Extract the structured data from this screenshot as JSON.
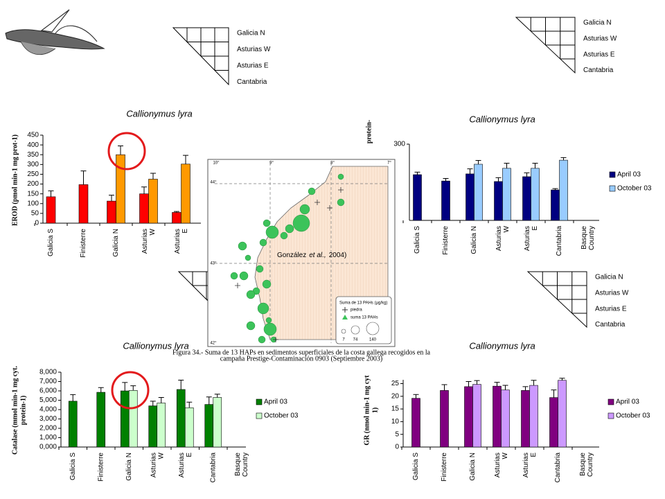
{
  "chart_data": [
    {
      "type": "bar",
      "title": "Callionymus lyra",
      "ylabel": "EROD (pmol min-1 mg prot-1)",
      "categories": [
        "Galicia S",
        "Finisterre",
        "Galicia N",
        "Asturias W",
        "Asturias E"
      ],
      "series": [
        {
          "color": "#ff0000",
          "values": [
            135,
            197,
            113,
            150,
            55
          ],
          "errors": [
            30,
            70,
            30,
            35,
            5
          ]
        },
        {
          "color": "#ff9900",
          "values": [
            null,
            null,
            350,
            225,
            302
          ],
          "errors": [
            null,
            null,
            45,
            30,
            45
          ]
        }
      ],
      "ylim": [
        0,
        450
      ],
      "yticks": [
        0,
        50,
        100,
        150,
        200,
        250,
        300,
        350,
        400,
        450
      ]
    },
    {
      "type": "bar",
      "title": "Callionymus lyra",
      "ylabel": "protein-",
      "categories": [
        "Galicia S",
        "Finisterre",
        "Galicia N",
        "Asturias W",
        "Asturias E",
        "Cantabria",
        "Basque Country"
      ],
      "series": [
        {
          "name": "April 03",
          "color": "#000080",
          "values": [
            180,
            155,
            183,
            153,
            172,
            120,
            null
          ],
          "errors": [
            10,
            10,
            20,
            15,
            15,
            5,
            null
          ]
        },
        {
          "name": "October 03",
          "color": "#99ccff",
          "values": [
            null,
            null,
            221,
            205,
            205,
            237,
            null
          ],
          "errors": [
            null,
            null,
            15,
            20,
            20,
            10,
            null
          ]
        }
      ],
      "ylim": [
        0,
        300
      ],
      "yticks": [
        300
      ]
    },
    {
      "type": "bar",
      "title": "Callionymus lyra",
      "ylabel": [
        "Catalase (mmol min-1 mg cyt.",
        "protein-1)"
      ],
      "categories": [
        "Galicia S",
        "Finisterre",
        "Galicia N",
        "Asturias W",
        "Asturias E",
        "Cantabria",
        "Basque Country"
      ],
      "series": [
        {
          "name": "April 03",
          "color": "#008000",
          "values": [
            4900,
            5850,
            6000,
            4400,
            6150,
            4550,
            null
          ],
          "errors": [
            700,
            500,
            900,
            500,
            1000,
            800,
            null
          ]
        },
        {
          "name": "October 03",
          "color": "#ccffcc",
          "values": [
            null,
            null,
            6050,
            4700,
            4200,
            5300,
            null
          ],
          "errors": [
            null,
            null,
            500,
            600,
            600,
            350,
            null
          ]
        }
      ],
      "ylim": [
        0,
        8000
      ],
      "yticks": [
        {
          "value": 0,
          "label": "0,000"
        },
        {
          "value": 1000,
          "label": "1,000"
        },
        {
          "value": 2000,
          "label": "2,000"
        },
        {
          "value": 3000,
          "label": "3,000"
        },
        {
          "value": 4000,
          "label": "4,000"
        },
        {
          "value": 5000,
          "label": "5,000"
        },
        {
          "value": 6000,
          "label": "6,000"
        },
        {
          "value": 7000,
          "label": "7,000"
        },
        {
          "value": 8000,
          "label": "8,000"
        }
      ]
    },
    {
      "type": "bar",
      "title": "Callionymus lyra",
      "ylabel": [
        "GR (nmol min-1 mg cyt",
        "1)"
      ],
      "categories": [
        "Galicia S",
        "Finisterre",
        "Galicia N",
        "Asturias W",
        "Asturias E",
        "Cantabria",
        "Basque Country"
      ],
      "series": [
        {
          "name": "April 03",
          "color": "#800080",
          "values": [
            19.2,
            22.3,
            23.8,
            24,
            22.3,
            19.5,
            null
          ],
          "errors": [
            1.5,
            2.3,
            2,
            1.5,
            1.5,
            3,
            null
          ]
        },
        {
          "name": "October 03",
          "color": "#cc99ff",
          "values": [
            null,
            null,
            24.7,
            22.5,
            24.3,
            26.3,
            null
          ],
          "errors": [
            null,
            null,
            1.5,
            1.8,
            2,
            0.8,
            null
          ]
        }
      ],
      "ylim": [
        0,
        26.5
      ],
      "yticks": [
        0,
        5,
        10,
        15,
        20,
        25
      ]
    }
  ],
  "matrices": [
    {
      "labels": [
        "Galicia N",
        "Asturias W",
        "Asturias E",
        "Cantabria"
      ]
    },
    {
      "labels": [
        "Galicia N",
        "Asturias W",
        "Asturias E",
        "Cantabria"
      ]
    },
    {
      "labels": [
        "Galicia N",
        "Asturias W",
        "Asturias E",
        "Cantabria"
      ]
    }
  ],
  "map": {
    "citation": [
      "González",
      "et al.,",
      "2004)"
    ],
    "longitudes": [
      "10°",
      "9°",
      "8°",
      "7°"
    ],
    "latitudes": [
      "44°",
      "43°",
      "42°"
    ],
    "legend_title": "Suma de 13 PAHs (µg/kg)",
    "legend_items": [
      "piedra",
      "suma 13 PAHs"
    ],
    "legend_sizes": [
      "7",
      "74",
      "140"
    ],
    "caption": [
      "Figura 34.- Suma de 13 HAPs en sedimentos superficiales de la costa gallega recogidos en la",
      "campaña Prestige-Contaminación 0903 (Septiembre 2003)"
    ]
  }
}
